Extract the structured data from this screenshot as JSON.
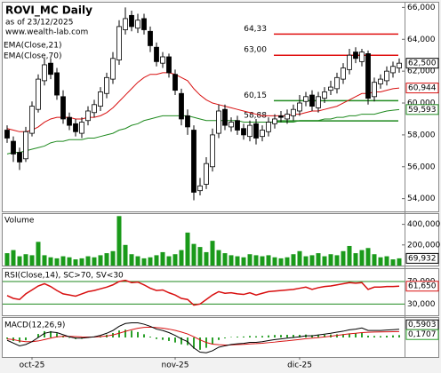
{
  "chart_data": [
    {
      "type": "candlestick",
      "title": "ROVI_MC Daily",
      "subtitle": "as of 23/12/2025",
      "source": "www.wealth-lab.com",
      "categories": [
        null,
        null,
        null,
        null,
        "oct-25",
        null,
        null,
        null,
        null,
        null,
        null,
        null,
        null,
        null,
        null,
        null,
        null,
        null,
        null,
        null,
        null,
        null,
        null,
        null,
        null,
        null,
        null,
        "nov-25",
        null,
        null,
        null,
        null,
        null,
        null,
        null,
        null,
        null,
        null,
        null,
        null,
        null,
        null,
        null,
        null,
        null,
        null,
        null,
        "dic-25",
        null,
        null,
        null,
        null,
        null,
        null,
        null,
        null,
        null,
        null,
        null,
        null,
        null,
        null,
        null,
        null
      ],
      "open": [
        58.3,
        57.6,
        56.9,
        56.5,
        58.1,
        59.6,
        61.4,
        62.5,
        61.9,
        60.4,
        59.1,
        58.7,
        58.1,
        58.9,
        59.4,
        59.8,
        60.6,
        61.5,
        62.7,
        64.6,
        65.5,
        64.7,
        65.3,
        64.5,
        63.5,
        62.5,
        62.9,
        61.8,
        60.6,
        59.2,
        58.3,
        54.5,
        54.9,
        56.0,
        58.1,
        59.6,
        58.5,
        58.9,
        58.4,
        57.9,
        58.7,
        57.9,
        58.2,
        58.7,
        59.2,
        59.0,
        59.2,
        59.5,
        60.1,
        60.5,
        59.7,
        60.3,
        60.8,
        60.9,
        61.5,
        62.1,
        63.2,
        62.6,
        63.1,
        60.4,
        61.2,
        61.4,
        61.9,
        62.2
      ],
      "high": [
        58.6,
        57.9,
        57.2,
        58.5,
        60.1,
        61.8,
        62.8,
        62.8,
        62.2,
        60.8,
        59.4,
        59.0,
        59.1,
        59.8,
        60.2,
        61.0,
        61.9,
        63.2,
        65.2,
        66.0,
        65.8,
        65.6,
        65.6,
        64.8,
        63.8,
        63.2,
        63.1,
        62.1,
        60.9,
        59.6,
        58.6,
        55.3,
        56.6,
        58.4,
        59.9,
        59.9,
        59.1,
        59.2,
        58.7,
        58.9,
        59.0,
        58.6,
        59.1,
        59.3,
        59.5,
        59.6,
        59.9,
        60.5,
        60.7,
        60.8,
        60.7,
        61.0,
        61.4,
        61.9,
        62.5,
        63.4,
        63.5,
        63.4,
        63.3,
        61.6,
        61.8,
        62.3,
        62.6,
        62.8
      ],
      "low": [
        57.5,
        56.3,
        55.8,
        56.3,
        57.9,
        59.4,
        61.1,
        61.5,
        60.2,
        58.7,
        58.3,
        57.9,
        57.8,
        58.6,
        59.1,
        59.5,
        60.3,
        61.2,
        62.4,
        64.3,
        64.5,
        64.4,
        64.3,
        63.2,
        62.3,
        62.2,
        61.6,
        60.5,
        58.6,
        58.0,
        53.9,
        54.2,
        54.6,
        55.7,
        57.8,
        58.3,
        58.2,
        58.0,
        57.7,
        57.6,
        57.4,
        57.6,
        57.9,
        58.4,
        58.8,
        58.7,
        58.9,
        59.2,
        59.8,
        59.5,
        59.4,
        60.0,
        60.5,
        60.6,
        61.2,
        61.8,
        62.5,
        62.3,
        59.9,
        60.1,
        60.9,
        61.1,
        61.6,
        61.9
      ],
      "close": [
        57.8,
        56.8,
        56.3,
        58.2,
        59.8,
        61.5,
        62.4,
        61.8,
        60.5,
        59.0,
        58.6,
        58.2,
        58.8,
        59.5,
        59.9,
        60.7,
        61.6,
        62.8,
        64.8,
        65.3,
        64.8,
        65.2,
        64.6,
        63.6,
        62.6,
        62.9,
        61.9,
        60.8,
        59.0,
        58.5,
        54.4,
        54.8,
        56.2,
        58.0,
        59.5,
        58.6,
        58.8,
        58.3,
        58.0,
        58.6,
        57.8,
        58.3,
        58.8,
        59.0,
        59.1,
        59.3,
        59.6,
        60.0,
        60.4,
        59.8,
        60.4,
        60.7,
        61.0,
        61.6,
        62.2,
        63.0,
        62.8,
        63.2,
        60.3,
        61.3,
        61.5,
        62.0,
        62.3,
        62.5
      ],
      "last_label": "62,500",
      "ylim": [
        53.2,
        66.3
      ],
      "yticks": [
        {
          "value": 54,
          "label": "54,000"
        },
        {
          "value": 56,
          "label": "56,000"
        },
        {
          "value": 58,
          "label": "58,000"
        },
        {
          "value": 60,
          "label": "60,000"
        },
        {
          "value": 62,
          "label": "62,000"
        },
        {
          "value": 64,
          "label": "64,000"
        },
        {
          "value": 66,
          "label": "66,000"
        }
      ],
      "series": [
        {
          "name": "EMA(Close,21)",
          "color": "#d81010",
          "last_label": "60,944",
          "values": [
            58.4,
            58.3,
            58.2,
            58.2,
            58.3,
            58.5,
            58.8,
            59.0,
            59.1,
            59.1,
            59.1,
            59.0,
            59.0,
            59.1,
            59.1,
            59.2,
            59.4,
            59.7,
            60.1,
            60.5,
            60.9,
            61.3,
            61.6,
            61.8,
            61.8,
            61.9,
            61.9,
            61.8,
            61.6,
            61.4,
            60.9,
            60.5,
            60.2,
            60.0,
            59.9,
            59.8,
            59.7,
            59.6,
            59.5,
            59.4,
            59.3,
            59.2,
            59.2,
            59.2,
            59.2,
            59.2,
            59.3,
            59.3,
            59.4,
            59.5,
            59.5,
            59.6,
            59.7,
            59.8,
            60.0,
            60.2,
            60.4,
            60.6,
            60.6,
            60.7,
            60.7,
            60.8,
            60.9,
            60.944
          ]
        },
        {
          "name": "EMA(Close,70)",
          "color": "#1f8a1f",
          "last_label": "59,593",
          "values": [
            56.8,
            56.9,
            56.9,
            57.0,
            57.1,
            57.2,
            57.3,
            57.5,
            57.6,
            57.6,
            57.7,
            57.7,
            57.7,
            57.8,
            57.8,
            57.9,
            58.0,
            58.1,
            58.3,
            58.4,
            58.6,
            58.7,
            58.9,
            59.0,
            59.1,
            59.2,
            59.2,
            59.2,
            59.2,
            59.2,
            59.1,
            59.0,
            58.9,
            58.9,
            58.9,
            58.9,
            58.9,
            58.9,
            58.8,
            58.8,
            58.8,
            58.8,
            58.8,
            58.8,
            58.8,
            58.8,
            58.8,
            58.9,
            58.9,
            58.9,
            58.9,
            59.0,
            59.0,
            59.1,
            59.1,
            59.2,
            59.2,
            59.3,
            59.3,
            59.3,
            59.4,
            59.5,
            59.55,
            59.593
          ]
        }
      ],
      "levels": [
        {
          "value": 64.33,
          "label": "64,33",
          "color": "#e01010"
        },
        {
          "value": 63.0,
          "label": "63,00",
          "color": "#e01010"
        },
        {
          "value": 60.15,
          "label": "60,15",
          "color": "#1f8a1f"
        },
        {
          "value": 58.88,
          "label": "58,88",
          "color": "#1f8a1f"
        }
      ]
    },
    {
      "type": "bar",
      "title": "Volume",
      "color": "#1a9a1a",
      "last_label": "69,932",
      "values": [
        120000,
        150000,
        90000,
        110000,
        100000,
        230000,
        100000,
        80000,
        70000,
        90000,
        80000,
        60000,
        70000,
        90000,
        80000,
        100000,
        120000,
        140000,
        480000,
        200000,
        110000,
        90000,
        70000,
        80000,
        100000,
        130000,
        90000,
        110000,
        150000,
        320000,
        210000,
        180000,
        130000,
        240000,
        150000,
        120000,
        100000,
        90000,
        80000,
        110000,
        100000,
        90000,
        100000,
        80000,
        70000,
        80000,
        110000,
        140000,
        90000,
        100000,
        120000,
        90000,
        110000,
        100000,
        140000,
        190000,
        120000,
        150000,
        170000,
        110000,
        80000,
        90000,
        60000,
        69932
      ],
      "ylim": [
        0,
        500000
      ],
      "yticks": [
        {
          "value": 200000,
          "label": "200,000"
        },
        {
          "value": 400000,
          "label": "400,000"
        }
      ]
    },
    {
      "type": "line",
      "title": "RSI(Close,14), SC>70, SV<30",
      "color": "#d81010",
      "band_color": "#1f8a1f",
      "last_label": "61,650",
      "values": [
        45,
        40,
        38,
        48,
        55,
        62,
        66,
        61,
        54,
        48,
        46,
        44,
        48,
        52,
        54,
        57,
        60,
        64,
        70,
        72,
        68,
        69,
        64,
        58,
        54,
        55,
        50,
        46,
        40,
        38,
        28,
        30,
        38,
        46,
        52,
        49,
        50,
        48,
        47,
        50,
        46,
        49,
        52,
        53,
        54,
        55,
        56,
        58,
        60,
        56,
        59,
        61,
        62,
        64,
        66,
        68,
        67,
        68,
        56,
        60,
        60,
        61,
        61,
        61.65
      ],
      "ylim": [
        10,
        92
      ],
      "yticks": [
        {
          "value": 70,
          "label": "70,000"
        },
        {
          "value": 30,
          "label": "30,000"
        }
      ]
    },
    {
      "type": "macd",
      "title": "MACD(12,26,9)",
      "macd_color": "#000000",
      "signal_color": "#d81010",
      "histogram_color": "#2aa02a",
      "macd_last_label": "0,5903",
      "histogram_last_label": "0,1707",
      "macd": [
        -0.2,
        -0.4,
        -0.6,
        -0.5,
        -0.3,
        0.0,
        0.3,
        0.4,
        0.35,
        0.2,
        0.05,
        -0.05,
        -0.05,
        0.0,
        0.05,
        0.15,
        0.3,
        0.5,
        0.8,
        1.0,
        1.05,
        1.05,
        0.95,
        0.8,
        0.6,
        0.5,
        0.35,
        0.15,
        -0.1,
        -0.3,
        -0.75,
        -1.05,
        -1.1,
        -0.95,
        -0.7,
        -0.6,
        -0.5,
        -0.45,
        -0.42,
        -0.35,
        -0.35,
        -0.3,
        -0.22,
        -0.15,
        -0.1,
        -0.05,
        0.0,
        0.05,
        0.12,
        0.12,
        0.18,
        0.24,
        0.3,
        0.38,
        0.45,
        0.55,
        0.6,
        0.68,
        0.5,
        0.5,
        0.5,
        0.53,
        0.56,
        0.5903
      ],
      "signal": [
        -0.1,
        -0.15,
        -0.25,
        -0.3,
        -0.3,
        -0.25,
        -0.15,
        -0.05,
        0.05,
        0.08,
        0.08,
        0.06,
        0.04,
        0.03,
        0.03,
        0.06,
        0.1,
        0.18,
        0.3,
        0.44,
        0.56,
        0.66,
        0.72,
        0.74,
        0.71,
        0.67,
        0.6,
        0.51,
        0.39,
        0.25,
        0.05,
        -0.17,
        -0.36,
        -0.48,
        -0.52,
        -0.54,
        -0.53,
        -0.51,
        -0.49,
        -0.46,
        -0.44,
        -0.41,
        -0.37,
        -0.33,
        -0.28,
        -0.24,
        -0.19,
        -0.14,
        -0.09,
        -0.05,
        -0.01,
        0.04,
        0.09,
        0.15,
        0.21,
        0.26,
        0.3,
        0.35,
        0.37,
        0.39,
        0.4,
        0.405,
        0.41,
        0.4196
      ],
      "histogram": [
        -0.1,
        -0.25,
        -0.35,
        -0.2,
        0.0,
        0.25,
        0.45,
        0.45,
        0.3,
        0.12,
        -0.03,
        -0.11,
        -0.09,
        -0.03,
        0.02,
        0.09,
        0.2,
        0.32,
        0.5,
        0.56,
        0.49,
        0.39,
        0.23,
        0.06,
        -0.11,
        -0.17,
        -0.25,
        -0.36,
        -0.49,
        -0.55,
        -0.8,
        -0.88,
        -0.74,
        -0.47,
        -0.18,
        -0.06,
        0.03,
        0.06,
        0.07,
        0.11,
        0.09,
        0.11,
        0.15,
        0.18,
        0.18,
        0.19,
        0.19,
        0.19,
        0.21,
        0.17,
        0.19,
        0.2,
        0.21,
        0.23,
        0.24,
        0.29,
        0.3,
        0.33,
        0.13,
        0.11,
        0.1,
        0.125,
        0.15,
        0.1707
      ],
      "ylim": [
        -1.4,
        1.4
      ]
    }
  ]
}
